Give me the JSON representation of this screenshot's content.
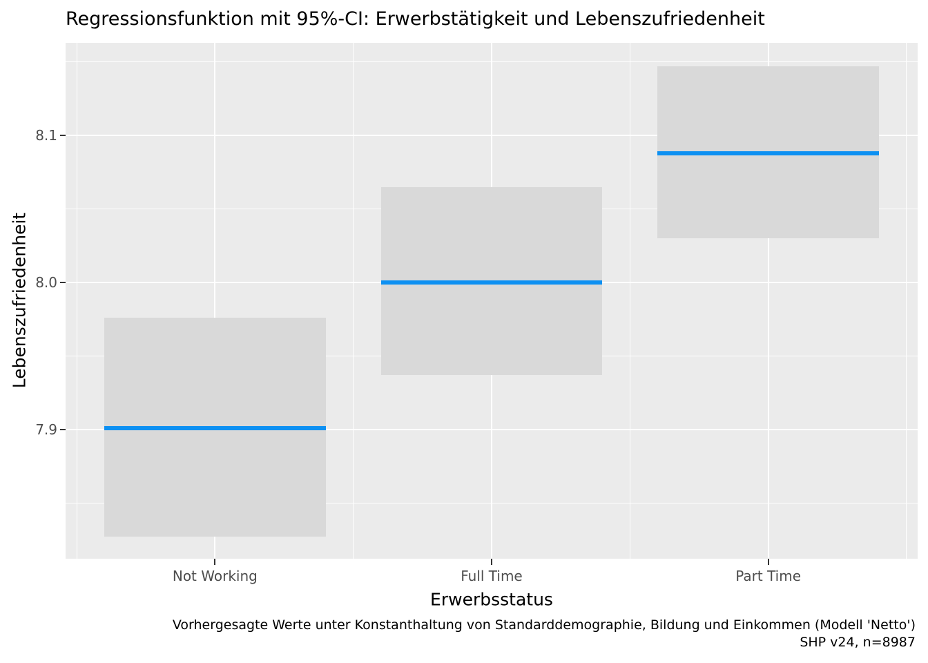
{
  "chart_data": {
    "type": "scatter",
    "variant": "predicted-values-crossbar-with-95ci-band",
    "title": "Regressionsfunktion mit 95%-CI: Erwerbstätigkeit und Lebenszufriedenheit",
    "xlabel": "Erwerbsstatus",
    "ylabel": "Lebenszufriedenheit",
    "caption": [
      "Vorhergesagte Werte unter Konstanthaltung von Standarddemographie, Bildung und Einkommen (Modell 'Netto')",
      "SHP v24, n=8987"
    ],
    "categories": [
      "Not Working",
      "Full Time",
      "Part Time"
    ],
    "series": [
      {
        "name": "predicted",
        "values": [
          7.901,
          8.0,
          8.088
        ]
      },
      {
        "name": "ci_lower_95",
        "values": [
          7.827,
          7.937,
          8.03
        ]
      },
      {
        "name": "ci_upper_95",
        "values": [
          7.976,
          8.065,
          8.147
        ]
      }
    ],
    "y_ticks": {
      "values": [
        7.9,
        8.0,
        8.1
      ],
      "labels": [
        "7.9",
        "8.0",
        "8.1"
      ]
    },
    "y_minor": [
      7.85,
      7.95,
      8.05,
      8.15
    ],
    "ylim": [
      7.812,
      8.163
    ],
    "x_positions": [
      1,
      2,
      3
    ],
    "x_minor": [
      0.5,
      1.5,
      2.5,
      3.5
    ],
    "xlim": [
      0.46,
      3.54
    ],
    "band_width": 0.8,
    "grid": "on",
    "legend": "none",
    "colors": {
      "predicted_line": "#0d90f2",
      "ci_band": "#d9d9d9",
      "panel_background": "#ebebeb",
      "gridline": "#ffffff",
      "axis_text": "#4d4d4d",
      "tick_mark": "#333333",
      "text": "#000000"
    }
  }
}
